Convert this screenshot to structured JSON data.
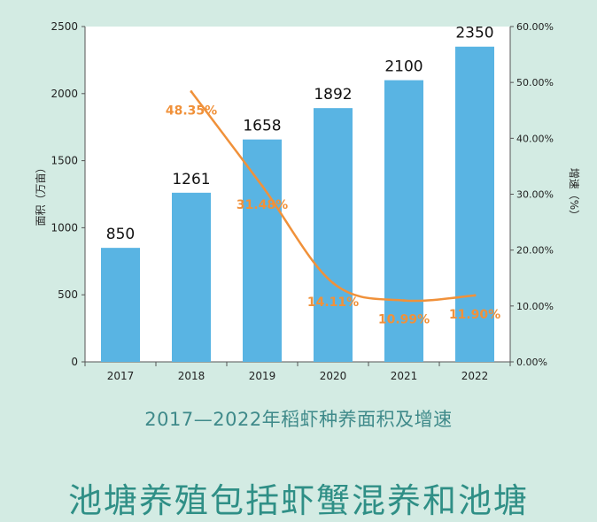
{
  "chart_data": {
    "type": "bar+line",
    "categories": [
      "2017",
      "2018",
      "2019",
      "2020",
      "2021",
      "2022"
    ],
    "bar_series": {
      "values": [
        850,
        1261,
        1658,
        1892,
        2100,
        2350
      ],
      "labels": [
        "850",
        "1261",
        "1658",
        "1892",
        "2100",
        "2350"
      ],
      "color": "#59b4e3"
    },
    "line_series": {
      "x": [
        "2018",
        "2019",
        "2020",
        "2021",
        "2022"
      ],
      "values": [
        48.35,
        31.48,
        14.11,
        10.99,
        11.9
      ],
      "labels": [
        "48.35%",
        "31.48%",
        "14.11%",
        "10.99%",
        "11.90%"
      ],
      "color": "#f0913a"
    },
    "title": "2017—2022年稻虾种养面积及增速",
    "ylabel": "面积（万亩）",
    "y2label": "增速（%）",
    "ylim": [
      0,
      2500
    ],
    "y2lim": [
      0,
      60
    ],
    "yticks": [
      "0",
      "500",
      "1000",
      "1500",
      "2000",
      "2500"
    ],
    "y2ticks": [
      "0.00%",
      "10.00%",
      "20.00%",
      "30.00%",
      "40.00%",
      "50.00%",
      "60.00%"
    ],
    "grid": false,
    "legend": "none"
  },
  "banner": {
    "text": "池塘养殖包括虾蟹混养和池塘"
  },
  "colors": {
    "background": "#d3ebe3",
    "plot_background": "#ffffff",
    "bar": "#59b4e3",
    "line": "#f0913a",
    "title": "#3f8a8a",
    "banner": "#2f8f86"
  }
}
